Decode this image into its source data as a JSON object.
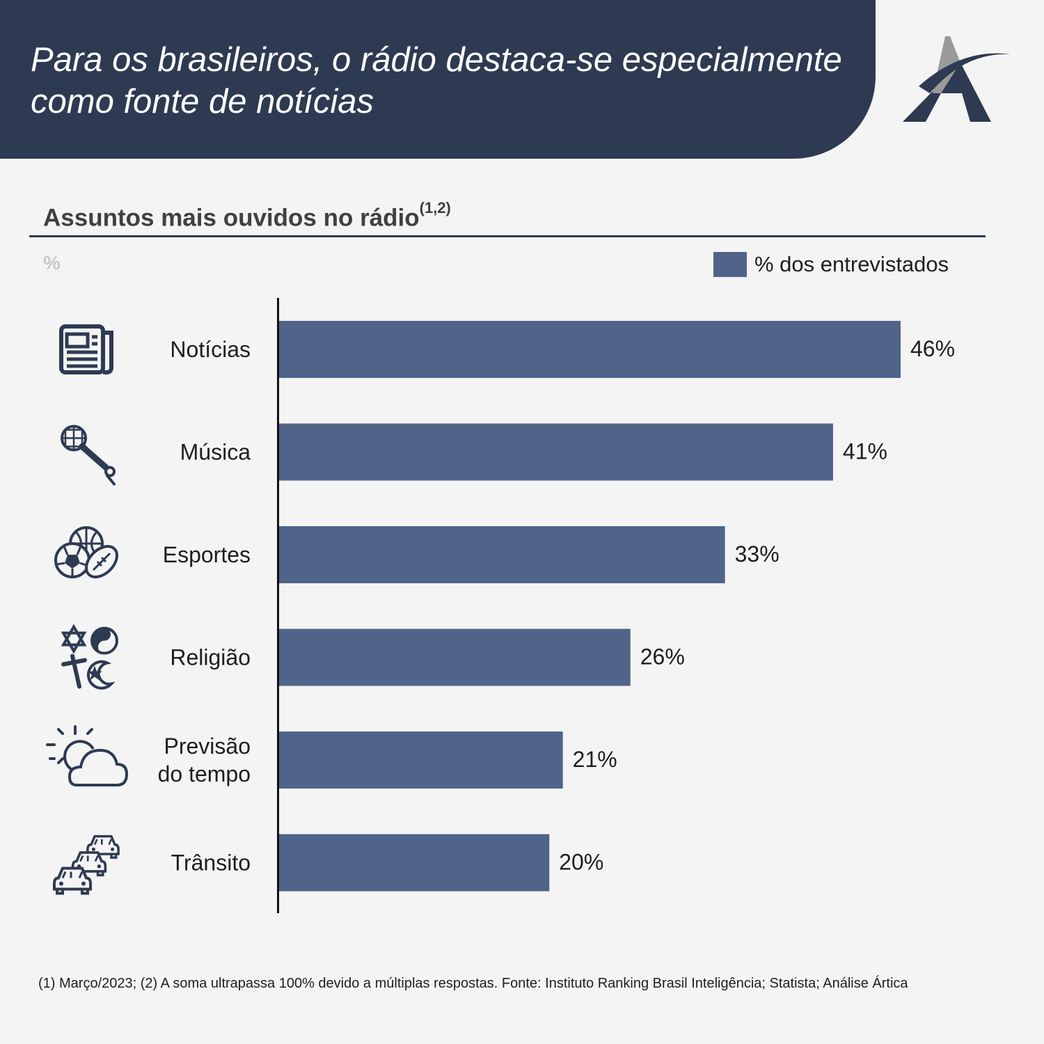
{
  "header": {
    "title_line1": "Para os brasileiros, o rádio destaca-se especialmente",
    "title_line2": "como fonte de notícias",
    "logo_icon": "artica-logo-icon"
  },
  "colors": {
    "banner": "#2d3a52",
    "bar": "#50648a",
    "axis": "#111111",
    "icon": "#2d3a52"
  },
  "chart_data": {
    "type": "bar",
    "orientation": "horizontal",
    "title": "Assuntos mais ouvidos no rádio",
    "title_superscript": "(1,2)",
    "unit_label": "%",
    "legend": [
      "% dos entrevistados"
    ],
    "categories": [
      "Notícias",
      "Música",
      "Esportes",
      "Religião",
      "Previsão do tempo",
      "Trânsito"
    ],
    "category_lines": [
      [
        "Notícias"
      ],
      [
        "Música"
      ],
      [
        "Esportes"
      ],
      [
        "Religião"
      ],
      [
        "Previsão",
        "do tempo"
      ],
      [
        "Trânsito"
      ]
    ],
    "icons": [
      "newspaper-icon",
      "microphone-icon",
      "sports-balls-icon",
      "religion-symbols-icon",
      "weather-icon",
      "traffic-icon"
    ],
    "series": [
      {
        "name": "% dos entrevistados",
        "values": [
          46,
          41,
          33,
          26,
          21,
          20
        ]
      }
    ],
    "value_labels": [
      "46%",
      "41%",
      "33%",
      "26%",
      "21%",
      "20%"
    ],
    "xlim": [
      0,
      50
    ],
    "grid": false,
    "legend_position": "top-right"
  },
  "footnote": "(1) Março/2023; (2) A soma ultrapassa 100% devido a múltiplas respostas. Fonte: Instituto Ranking Brasil Inteligência; Statista; Análise Ártica"
}
